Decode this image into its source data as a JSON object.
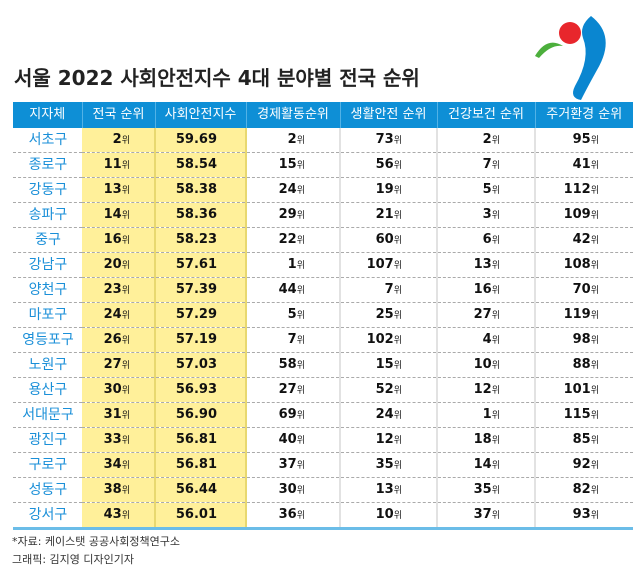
{
  "title": "서울 2022 사회안전지수 4대 분야별 전국 순위",
  "unit": "위",
  "headers": [
    "지자체",
    "전국 순위",
    "사회안전지수",
    "경제활동순위",
    "생활안전 순위",
    "건강보건 순위",
    "주거환경 순위"
  ],
  "rows": [
    [
      "서초구",
      "2",
      "59.69",
      "2",
      "73",
      "2",
      "95"
    ],
    [
      "종로구",
      "11",
      "58.54",
      "15",
      "56",
      "7",
      "41"
    ],
    [
      "강동구",
      "13",
      "58.38",
      "24",
      "19",
      "5",
      "112"
    ],
    [
      "송파구",
      "14",
      "58.36",
      "29",
      "21",
      "3",
      "109"
    ],
    [
      "중구",
      "16",
      "58.23",
      "22",
      "60",
      "6",
      "42"
    ],
    [
      "강남구",
      "20",
      "57.61",
      "1",
      "107",
      "13",
      "108"
    ],
    [
      "양천구",
      "23",
      "57.39",
      "44",
      "7",
      "16",
      "70"
    ],
    [
      "마포구",
      "24",
      "57.29",
      "5",
      "25",
      "27",
      "119"
    ],
    [
      "영등포구",
      "26",
      "57.19",
      "7",
      "102",
      "4",
      "98"
    ],
    [
      "노원구",
      "27",
      "57.03",
      "58",
      "15",
      "10",
      "88"
    ],
    [
      "용산구",
      "30",
      "56.93",
      "27",
      "52",
      "12",
      "101"
    ],
    [
      "서대문구",
      "31",
      "56.90",
      "69",
      "24",
      "1",
      "115"
    ],
    [
      "광진구",
      "33",
      "56.81",
      "40",
      "12",
      "18",
      "85"
    ],
    [
      "구로구",
      "34",
      "56.81",
      "37",
      "35",
      "14",
      "92"
    ],
    [
      "성동구",
      "38",
      "56.44",
      "30",
      "13",
      "35",
      "82"
    ],
    [
      "강서구",
      "43",
      "56.01",
      "36",
      "10",
      "37",
      "93"
    ]
  ],
  "footer": {
    "source": "*자료: 케이스탯 공공사회정책연구소",
    "credit": "그래픽: 김지영 디자인기자"
  },
  "colors": {
    "header": "#0e8fd6",
    "highlight": "#fff09a",
    "name": "#1a8fd8"
  }
}
